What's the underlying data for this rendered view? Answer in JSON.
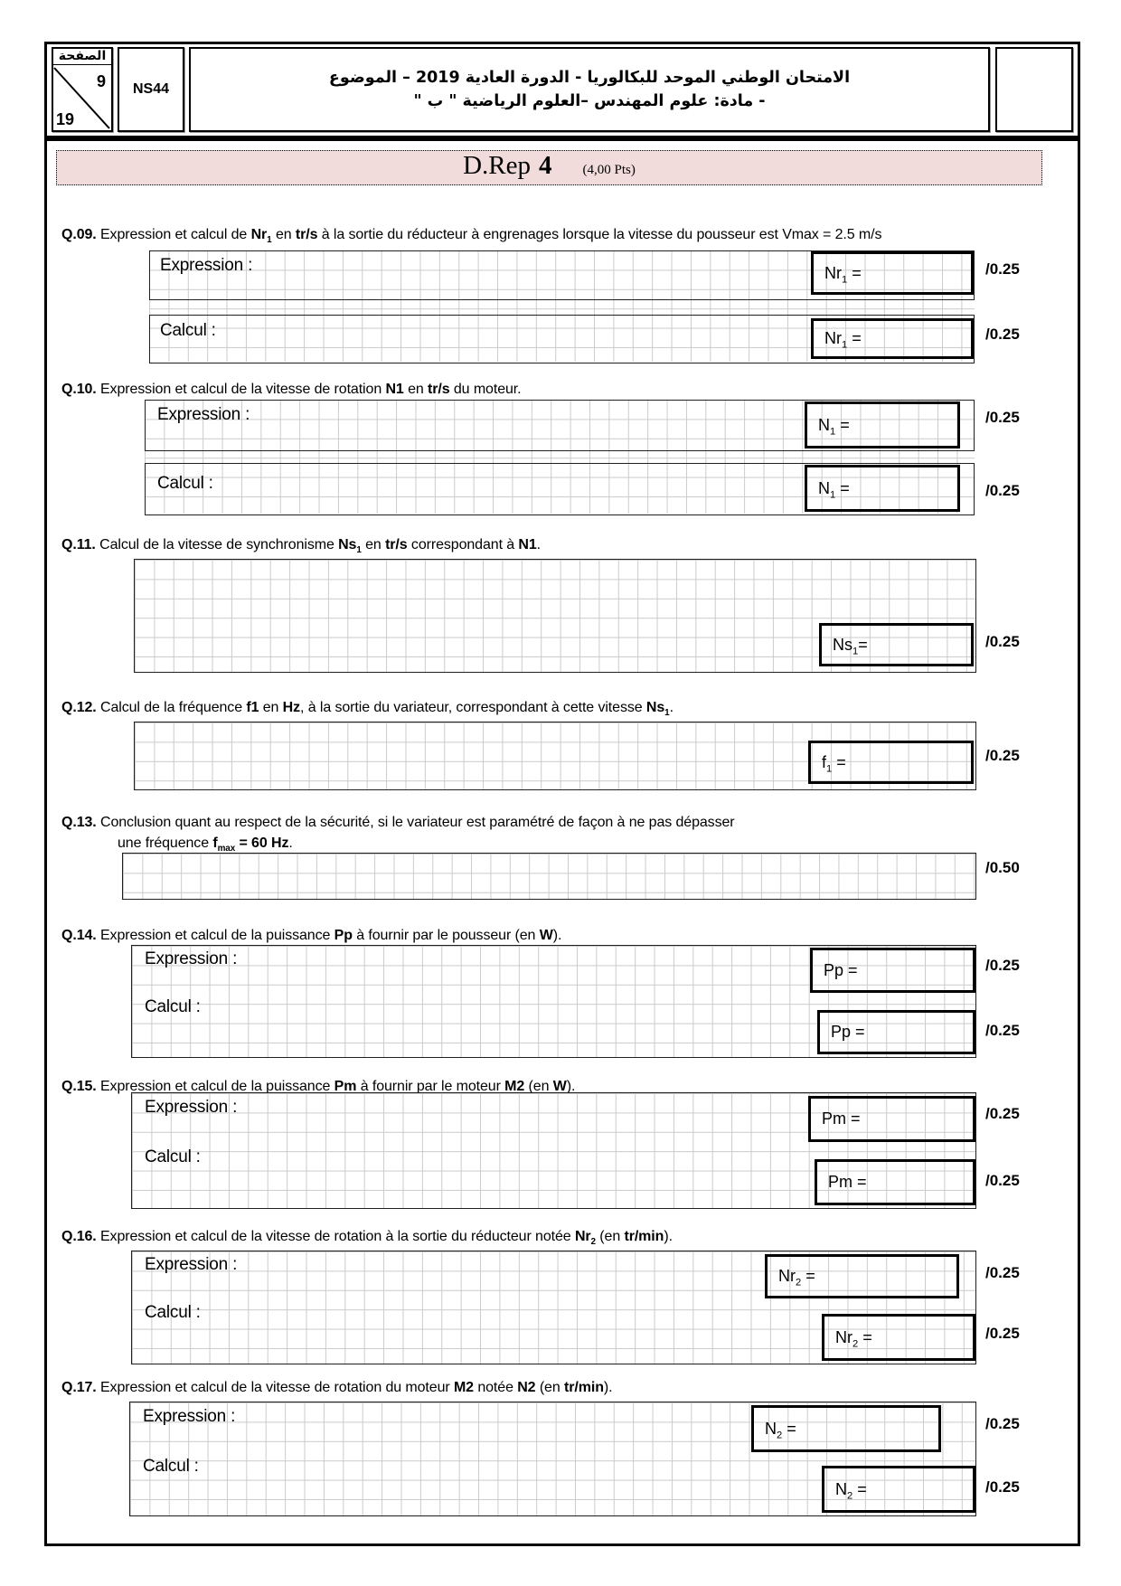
{
  "header": {
    "page_label": "الصفحة",
    "page_current": "9",
    "page_total": "19",
    "code": "NS44",
    "title_line1": "الامتحان الوطني الموحد للبكالوريا - الدورة العادية 2019 – الموضوع",
    "title_line2": "- مادة: علوم المهندس –العلوم الرياضية \" ب \""
  },
  "banner": {
    "title": "D.Rep",
    "number": "4",
    "points": "(4,00 Pts)"
  },
  "labels": {
    "expression": "Expression :",
    "calcul": "Calcul :"
  },
  "colors": {
    "banner_bg": "#f2dcdb",
    "grid_line": "#cbcbcb"
  },
  "questions": [
    {
      "text": [
        {
          "t": "Q.09.",
          "b": 1
        },
        {
          "t": " Expression et calcul de "
        },
        {
          "t": "Nr",
          "b": 1
        },
        {
          "t": "1",
          "b": 1,
          "sub": 1
        },
        {
          "t": " en "
        },
        {
          "t": "tr/s",
          "b": 1
        },
        {
          "t": " à la sortie du réducteur à engrenages lorsque la vitesse du pousseur est Vmax = 2.5 m/s"
        }
      ],
      "boxes": [
        [
          {
            "t": "Nr"
          },
          {
            "t": "1",
            "sub": 1
          },
          {
            "t": " ="
          }
        ],
        [
          {
            "t": "Nr"
          },
          {
            "t": "1",
            "sub": 1
          },
          {
            "t": " ="
          }
        ]
      ],
      "scores": [
        "/0.25",
        "/0.25"
      ]
    },
    {
      "text": [
        {
          "t": "Q.10.",
          "b": 1
        },
        {
          "t": " Expression et calcul de la vitesse de rotation "
        },
        {
          "t": "N1",
          "b": 1
        },
        {
          "t": " en "
        },
        {
          "t": "tr/s",
          "b": 1
        },
        {
          "t": " du moteur."
        }
      ],
      "boxes": [
        [
          {
            "t": "N"
          },
          {
            "t": "1",
            "sub": 1
          },
          {
            "t": " ="
          }
        ],
        [
          {
            "t": "N"
          },
          {
            "t": "1",
            "sub": 1
          },
          {
            "t": " ="
          }
        ]
      ],
      "scores": [
        "/0.25",
        "/0.25"
      ]
    },
    {
      "text": [
        {
          "t": "Q.11.",
          "b": 1
        },
        {
          "t": " Calcul de la vitesse de synchronisme "
        },
        {
          "t": "Ns",
          "b": 1
        },
        {
          "t": "1",
          "b": 1,
          "sub": 1
        },
        {
          "t": " en "
        },
        {
          "t": "tr/s",
          "b": 1
        },
        {
          "t": " correspondant à "
        },
        {
          "t": "N1",
          "b": 1
        },
        {
          "t": "."
        }
      ],
      "boxes": [
        [
          {
            "t": "Ns"
          },
          {
            "t": "1",
            "sub": 1
          },
          {
            "t": "="
          }
        ]
      ],
      "scores": [
        "/0.25"
      ]
    },
    {
      "text": [
        {
          "t": "Q.12.",
          "b": 1
        },
        {
          "t": " Calcul de la fréquence "
        },
        {
          "t": "f1",
          "b": 1
        },
        {
          "t": " en "
        },
        {
          "t": "Hz",
          "b": 1
        },
        {
          "t": ", à la sortie du variateur, correspondant à cette vitesse "
        },
        {
          "t": "Ns",
          "b": 1
        },
        {
          "t": "1",
          "b": 1,
          "sub": 1
        },
        {
          "t": "."
        }
      ],
      "boxes": [
        [
          {
            "t": "f"
          },
          {
            "t": "1",
            "sub": 1
          },
          {
            "t": " ="
          }
        ]
      ],
      "scores": [
        "/0.25"
      ]
    },
    {
      "text": [
        {
          "t": "Q.13.",
          "b": 1
        },
        {
          "t": " Conclusion quant au respect de la sécurité, si le variateur est paramétré de façon à ne pas dépasser"
        }
      ],
      "text2": [
        {
          "t": "une fréquence "
        },
        {
          "t": "f",
          "b": 1
        },
        {
          "t": "max",
          "b": 1,
          "sub": 1
        },
        {
          "t": " = 60 Hz",
          "b": 1
        },
        {
          "t": "."
        }
      ],
      "boxes": [],
      "scores": [
        "/0.50"
      ]
    },
    {
      "text": [
        {
          "t": "Q.14.",
          "b": 1
        },
        {
          "t": " Expression et calcul de la puissance "
        },
        {
          "t": "Pp",
          "b": 1
        },
        {
          "t": " à fournir par le pousseur (en "
        },
        {
          "t": "W",
          "b": 1
        },
        {
          "t": ")."
        }
      ],
      "boxes": [
        [
          {
            "t": "Pp ="
          }
        ],
        [
          {
            "t": "Pp ="
          }
        ]
      ],
      "scores": [
        "/0.25",
        "/0.25"
      ]
    },
    {
      "text": [
        {
          "t": "Q.15.",
          "b": 1
        },
        {
          "t": " Expression et calcul de la puissance "
        },
        {
          "t": "Pm",
          "b": 1
        },
        {
          "t": " à fournir par le moteur "
        },
        {
          "t": "M2",
          "b": 1
        },
        {
          "t": " (en "
        },
        {
          "t": "W",
          "b": 1
        },
        {
          "t": ")."
        }
      ],
      "boxes": [
        [
          {
            "t": "Pm ="
          }
        ],
        [
          {
            "t": "Pm ="
          }
        ]
      ],
      "scores": [
        "/0.25",
        "/0.25"
      ]
    },
    {
      "text": [
        {
          "t": "Q.16.",
          "b": 1
        },
        {
          "t": " Expression et calcul de la vitesse de rotation à la sortie du réducteur notée "
        },
        {
          "t": "Nr",
          "b": 1
        },
        {
          "t": "2",
          "b": 1,
          "sub": 1
        },
        {
          "t": " (en "
        },
        {
          "t": "tr/min",
          "b": 1
        },
        {
          "t": ")."
        }
      ],
      "boxes": [
        [
          {
            "t": "Nr"
          },
          {
            "t": "2",
            "sub": 1
          },
          {
            "t": " ="
          }
        ],
        [
          {
            "t": "Nr"
          },
          {
            "t": "2",
            "sub": 1
          },
          {
            "t": " ="
          }
        ]
      ],
      "scores": [
        "/0.25",
        "/0.25"
      ]
    },
    {
      "text": [
        {
          "t": "Q.17.",
          "b": 1
        },
        {
          "t": " Expression et calcul de la vitesse de rotation du moteur "
        },
        {
          "t": "M2",
          "b": 1
        },
        {
          "t": " notée "
        },
        {
          "t": "N2",
          "b": 1
        },
        {
          "t": " (en "
        },
        {
          "t": "tr/min",
          "b": 1
        },
        {
          "t": ")."
        }
      ],
      "boxes": [
        [
          {
            "t": "N"
          },
          {
            "t": "2",
            "sub": 1
          },
          {
            "t": " ="
          }
        ],
        [
          {
            "t": "N"
          },
          {
            "t": "2",
            "sub": 1
          },
          {
            "t": " ="
          }
        ]
      ],
      "scores": [
        "/0.25",
        "/0.25"
      ]
    }
  ]
}
